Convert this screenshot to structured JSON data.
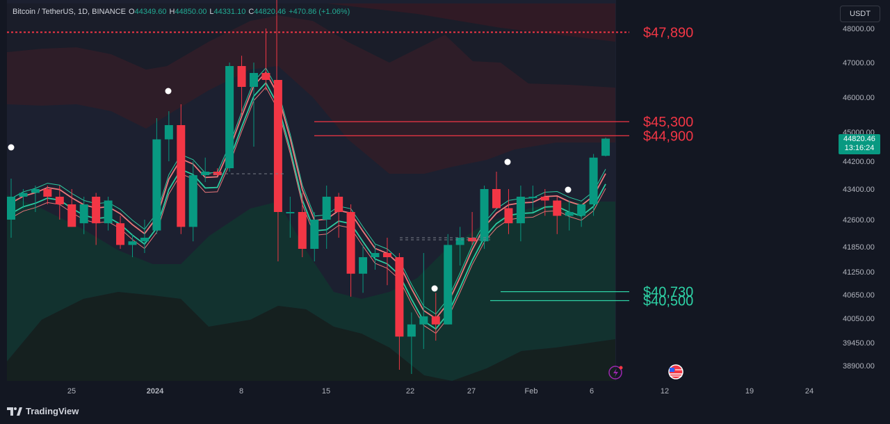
{
  "header": {
    "symbol": "Bitcoin / TetherUS, 1D, BINANCE",
    "open_label": "O",
    "open": "44349.60",
    "high_label": "H",
    "high": "44850.00",
    "low_label": "L",
    "low": "44331.10",
    "close_label": "C",
    "close": "44820.46",
    "change": "+470.86 (+1.06%)"
  },
  "currency_button": "USDT",
  "last_price": {
    "price": "44820.46",
    "countdown": "13:16:24"
  },
  "brand": "TradingView",
  "colors": {
    "up": "#089981",
    "down": "#f23645",
    "bg": "#131722",
    "up_band": "#2ed3a6",
    "down_band": "#f77c80"
  },
  "icons": {
    "flash": "lightning-icon",
    "event": "us-flag-icon"
  },
  "chart_data": {
    "type": "candlestick",
    "y_axis_ticks": [
      "48000.00",
      "47000.00",
      "46000.00",
      "45000.00",
      "44200.00",
      "43400.00",
      "42600.00",
      "41850.00",
      "41250.00",
      "40650.00",
      "40050.00",
      "39450.00",
      "38900.00"
    ],
    "x_axis_ticks": [
      "25",
      "2024",
      "8",
      "15",
      "22",
      "27",
      "Feb",
      "6",
      "12",
      "19",
      "24"
    ],
    "levels": [
      {
        "label": "$47,890",
        "value": 47890,
        "kind": "resistance",
        "style": "dotted"
      },
      {
        "label": "$45,300",
        "value": 45300,
        "kind": "resistance",
        "style": "solid"
      },
      {
        "label": "$44,900",
        "value": 44900,
        "kind": "resistance",
        "style": "solid"
      },
      {
        "label": "$40,730",
        "value": 40730,
        "kind": "support",
        "style": "solid"
      },
      {
        "label": "$40,500",
        "value": 40500,
        "kind": "support",
        "style": "solid"
      }
    ],
    "candles": [
      [
        42600,
        43700,
        42100,
        43200
      ],
      [
        43200,
        43400,
        42900,
        43300
      ],
      [
        43300,
        43500,
        42800,
        43400
      ],
      [
        43400,
        43500,
        43000,
        43200
      ],
      [
        43200,
        43500,
        42600,
        43000
      ],
      [
        43000,
        43400,
        42400,
        42400
      ],
      [
        42500,
        43200,
        42200,
        43000
      ],
      [
        43200,
        43300,
        41900,
        42500
      ],
      [
        42500,
        43200,
        42300,
        43100
      ],
      [
        42500,
        42700,
        41800,
        41900
      ],
      [
        41900,
        42200,
        41600,
        42000
      ],
      [
        42000,
        42600,
        41700,
        42100
      ],
      [
        42300,
        45400,
        42200,
        44800
      ],
      [
        44800,
        45600,
        44200,
        45200
      ],
      [
        45200,
        45800,
        42200,
        42400
      ],
      [
        42400,
        44200,
        42000,
        43800
      ],
      [
        43800,
        44300,
        43600,
        43900
      ],
      [
        43900,
        44000,
        43800,
        43800
      ],
      [
        44000,
        47000,
        43900,
        46900
      ],
      [
        46900,
        47200,
        45500,
        46300
      ],
      [
        46300,
        47000,
        44600,
        46700
      ],
      [
        46700,
        48000,
        46200,
        46500
      ],
      [
        46500,
        46500,
        41500,
        42800
      ],
      [
        42800,
        43200,
        42100,
        42800
      ],
      [
        42800,
        43300,
        41600,
        41800
      ],
      [
        41800,
        42800,
        41500,
        42600
      ],
      [
        42600,
        43500,
        41800,
        43200
      ],
      [
        43200,
        43300,
        42100,
        42800
      ],
      [
        42800,
        43000,
        40600,
        41200
      ],
      [
        41200,
        41900,
        40700,
        41600
      ],
      [
        41600,
        41900,
        41300,
        41700
      ],
      [
        41700,
        42100,
        40900,
        41600
      ],
      [
        41600,
        41700,
        38800,
        39600
      ],
      [
        39600,
        40200,
        38700,
        39900
      ],
      [
        39900,
        41700,
        39300,
        40100
      ],
      [
        40100,
        40700,
        39500,
        39900
      ],
      [
        39900,
        42200,
        39900,
        41900
      ],
      [
        41900,
        42400,
        41400,
        42100
      ],
      [
        42100,
        42800,
        41900,
        42000
      ],
      [
        42000,
        43500,
        41800,
        43400
      ],
      [
        43400,
        43900,
        42900,
        42900
      ],
      [
        42900,
        43400,
        42200,
        42500
      ],
      [
        42500,
        43500,
        42000,
        43200
      ],
      [
        43200,
        43500,
        42800,
        43200
      ],
      [
        43200,
        43400,
        42700,
        43100
      ],
      [
        43100,
        43200,
        42200,
        42700
      ],
      [
        42700,
        43100,
        42300,
        42800
      ],
      [
        42700,
        43000,
        42400,
        43000
      ],
      [
        43000,
        44400,
        42700,
        44300
      ],
      [
        44349.6,
        44850,
        44331.1,
        44820.46
      ]
    ],
    "signal_dots": [
      0,
      13,
      35,
      42,
      47
    ],
    "ylim": [
      38600,
      48600
    ]
  }
}
